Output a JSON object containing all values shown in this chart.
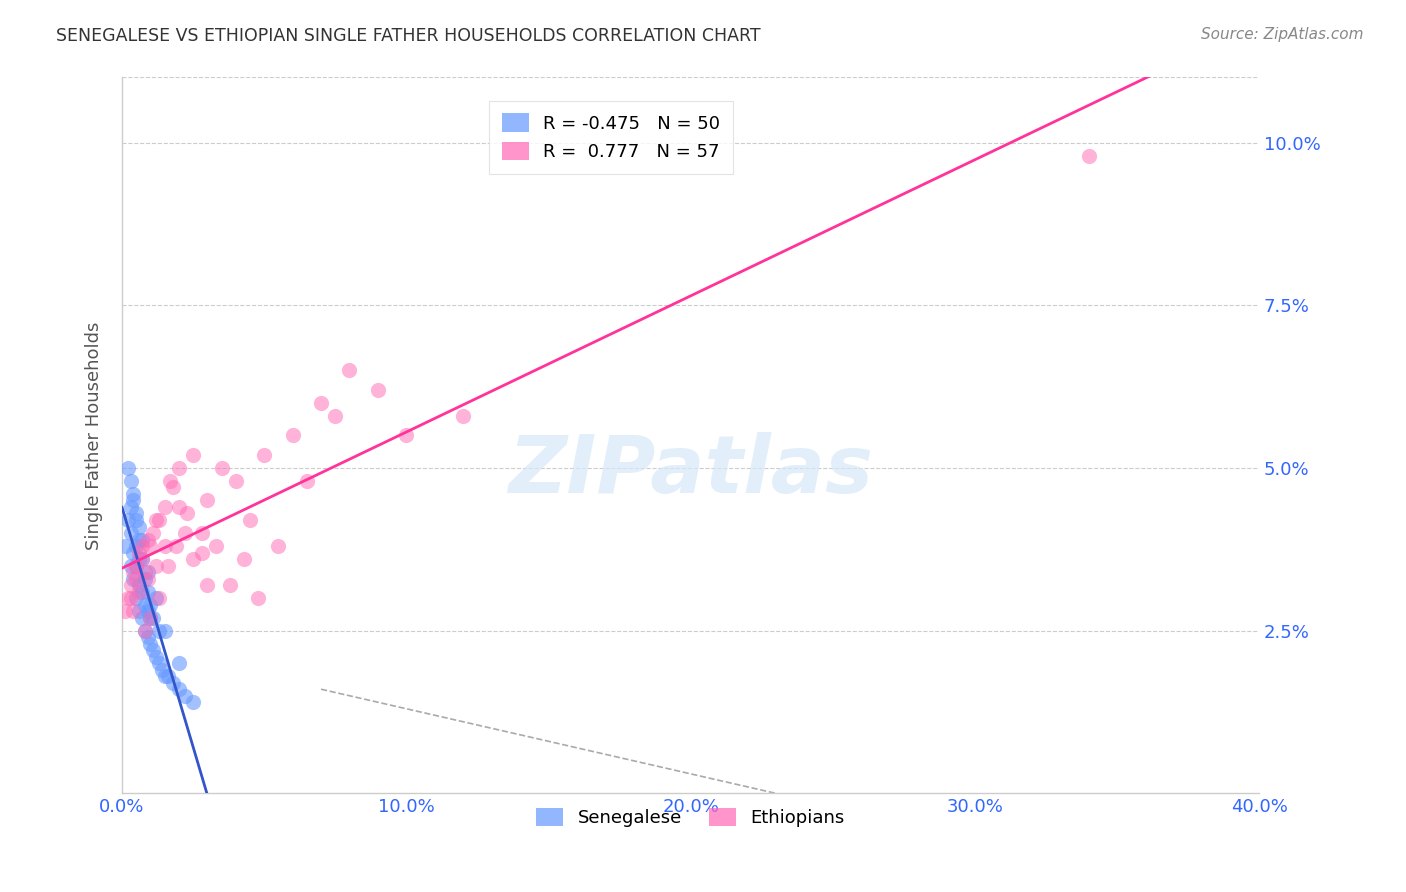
{
  "title": "SENEGALESE VS ETHIOPIAN SINGLE FATHER HOUSEHOLDS CORRELATION CHART",
  "source": "Source: ZipAtlas.com",
  "ylabel": "Single Father Households",
  "xlabel": "",
  "legend_blue_R": "-0.475",
  "legend_blue_N": "50",
  "legend_pink_R": "0.777",
  "legend_pink_N": "57",
  "legend_blue_label": "Senegalese",
  "legend_pink_label": "Ethiopians",
  "xlim": [
    0.0,
    0.4
  ],
  "ylim": [
    0.0,
    0.11
  ],
  "xticks": [
    0.0,
    0.1,
    0.2,
    0.3,
    0.4
  ],
  "xtick_labels": [
    "0.0%",
    "10.0%",
    "20.0%",
    "30.0%",
    "40.0%"
  ],
  "yticks": [
    0.025,
    0.05,
    0.075,
    0.1
  ],
  "ytick_labels": [
    "2.5%",
    "5.0%",
    "7.5%",
    "10.0%"
  ],
  "blue_color": "#6699ff",
  "pink_color": "#ff69b4",
  "blue_line_color": "#3355cc",
  "pink_line_color": "#ff3399",
  "watermark": "ZIPatlas",
  "background_color": "#ffffff",
  "grid_color": "#cccccc",
  "title_color": "#333333",
  "axis_label_color": "#555555",
  "tick_color": "#3366ff",
  "blue_points_x": [
    0.001,
    0.002,
    0.003,
    0.003,
    0.004,
    0.004,
    0.005,
    0.005,
    0.005,
    0.006,
    0.006,
    0.006,
    0.007,
    0.007,
    0.008,
    0.008,
    0.009,
    0.009,
    0.01,
    0.01,
    0.011,
    0.012,
    0.013,
    0.014,
    0.015,
    0.016,
    0.018,
    0.02,
    0.022,
    0.025,
    0.003,
    0.004,
    0.005,
    0.006,
    0.007,
    0.008,
    0.009,
    0.01,
    0.011,
    0.013,
    0.002,
    0.003,
    0.004,
    0.005,
    0.006,
    0.007,
    0.009,
    0.012,
    0.015,
    0.02
  ],
  "blue_points_y": [
    0.038,
    0.042,
    0.035,
    0.04,
    0.033,
    0.037,
    0.03,
    0.035,
    0.038,
    0.028,
    0.032,
    0.036,
    0.027,
    0.031,
    0.025,
    0.029,
    0.024,
    0.028,
    0.023,
    0.027,
    0.022,
    0.021,
    0.02,
    0.019,
    0.018,
    0.018,
    0.017,
    0.016,
    0.015,
    0.014,
    0.044,
    0.046,
    0.042,
    0.039,
    0.036,
    0.033,
    0.031,
    0.029,
    0.027,
    0.025,
    0.05,
    0.048,
    0.045,
    0.043,
    0.041,
    0.039,
    0.034,
    0.03,
    0.025,
    0.02
  ],
  "pink_points_x": [
    0.001,
    0.002,
    0.003,
    0.004,
    0.005,
    0.006,
    0.007,
    0.008,
    0.009,
    0.01,
    0.011,
    0.012,
    0.013,
    0.015,
    0.017,
    0.02,
    0.022,
    0.025,
    0.028,
    0.03,
    0.035,
    0.04,
    0.045,
    0.05,
    0.06,
    0.07,
    0.08,
    0.09,
    0.1,
    0.12,
    0.003,
    0.005,
    0.007,
    0.009,
    0.012,
    0.015,
    0.018,
    0.02,
    0.025,
    0.03,
    0.004,
    0.006,
    0.008,
    0.01,
    0.013,
    0.016,
    0.019,
    0.023,
    0.028,
    0.033,
    0.038,
    0.043,
    0.048,
    0.055,
    0.065,
    0.075,
    0.34
  ],
  "pink_points_y": [
    0.028,
    0.03,
    0.032,
    0.034,
    0.035,
    0.037,
    0.038,
    0.034,
    0.033,
    0.038,
    0.04,
    0.035,
    0.042,
    0.038,
    0.048,
    0.044,
    0.04,
    0.036,
    0.037,
    0.045,
    0.05,
    0.048,
    0.042,
    0.052,
    0.055,
    0.06,
    0.065,
    0.062,
    0.055,
    0.058,
    0.03,
    0.033,
    0.036,
    0.039,
    0.042,
    0.044,
    0.047,
    0.05,
    0.052,
    0.032,
    0.028,
    0.031,
    0.025,
    0.027,
    0.03,
    0.035,
    0.038,
    0.043,
    0.04,
    0.038,
    0.032,
    0.036,
    0.03,
    0.038,
    0.048,
    0.058,
    0.098
  ]
}
